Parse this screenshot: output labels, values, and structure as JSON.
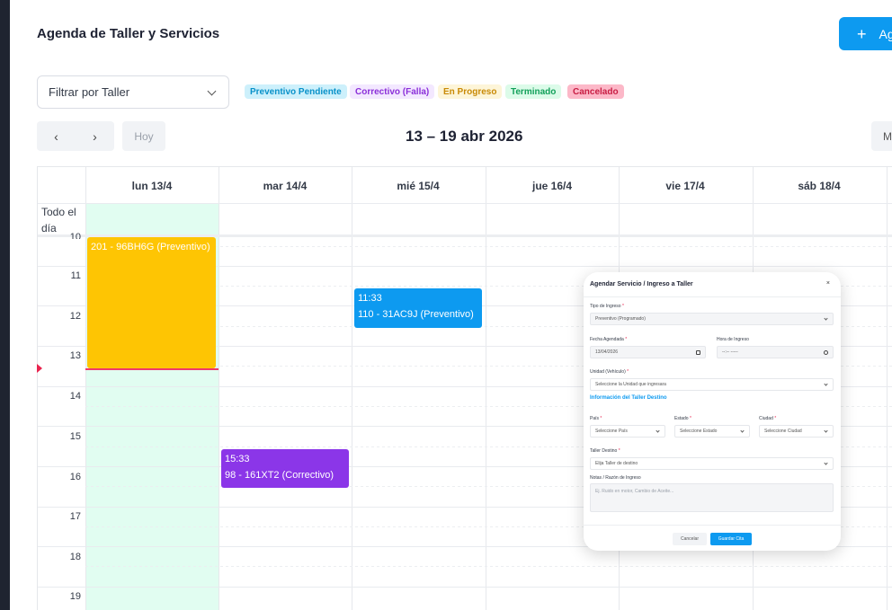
{
  "header": {
    "title": "Agenda de Taller y Servicios",
    "add_button_label": "Ag",
    "add_icon": "+"
  },
  "filter": {
    "label": "Filtrar por Taller"
  },
  "legend": [
    {
      "label": "Preventivo Pendiente",
      "bg": "#cdf0fb",
      "color": "#0891c9"
    },
    {
      "label": "Correctivo (Falla)",
      "bg": "#f3e8ff",
      "color": "#8b2fd9"
    },
    {
      "label": "En Progreso",
      "bg": "#fdf5d8",
      "color": "#c98a06"
    },
    {
      "label": "Terminado",
      "bg": "#dcfbe9",
      "color": "#12a05a"
    },
    {
      "label": "Cancelado",
      "bg": "#fcb8c8",
      "color": "#c81d43"
    }
  ],
  "toolbar": {
    "prev_icon": "‹",
    "next_icon": "›",
    "today_label": "Hoy",
    "range_title": "13 – 19 abr 2026",
    "view_label": "M"
  },
  "calendar": {
    "days": [
      "lun 13/4",
      "mar 14/4",
      "mié 15/4",
      "jue 16/4",
      "vie 17/4",
      "sáb 18/4"
    ],
    "all_day_label": "Todo el día",
    "hours": [
      "10",
      "11",
      "12",
      "13",
      "14",
      "15",
      "16",
      "17",
      "18",
      "19"
    ],
    "events": [
      {
        "time": "",
        "title": "201 - 96BH6G (Preventivo)",
        "color": "#fec503"
      },
      {
        "time": "11:33",
        "title": "110 - 31AC9J (Preventivo)",
        "color": "#0d9af0"
      },
      {
        "time": "15:33",
        "title": "98 - 161XT2 (Correctivo)",
        "color": "#8b36e8"
      }
    ]
  },
  "modal": {
    "title": "Agendar Servicio / Ingreso a Taller",
    "close_icon": "×",
    "tipo_label": "Tipo de Ingreso",
    "tipo_value": "Preventivo (Programado)",
    "fecha_label": "Fecha Agendada",
    "fecha_value": "13/04/2026",
    "hora_label": "Hora de Ingreso",
    "hora_value": "--:-- -----",
    "unidad_label": "Unidad (Vehículo)",
    "unidad_value": "Seleccione la Unidad que ingresara",
    "section_link": "Información del Taller Destino",
    "pais_label": "País",
    "pais_value": "Seleccione País",
    "estado_label": "Estado",
    "estado_value": "Seleccione Estado",
    "ciudad_label": "Ciudad",
    "ciudad_value": "Seleccione Ciudad",
    "taller_label": "Taller Destino",
    "taller_value": "Elija Taller de destino",
    "notas_label": "Notas / Razón de Ingreso",
    "notas_placeholder": "Ej. Ruido en motor, Cambio de Aceite...",
    "cancel_label": "Cancelar",
    "save_label": "Guardar Cita",
    "required_mark": "*"
  }
}
